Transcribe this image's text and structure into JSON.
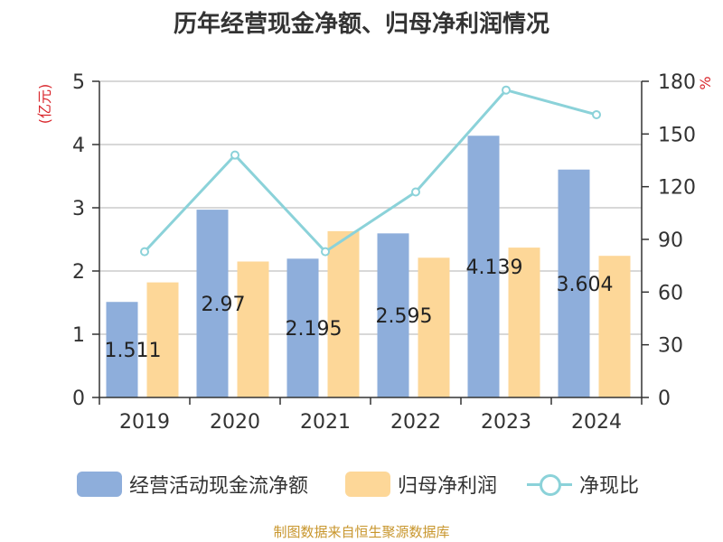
{
  "title": "历年经营现金净额、归母净利润情况",
  "source": "制图数据来自恒生聚源数据库",
  "chart_data": {
    "type": "bar",
    "title": "历年经营现金净额、归母净利润情况",
    "categories": [
      "2019",
      "2020",
      "2021",
      "2022",
      "2023",
      "2024"
    ],
    "series": [
      {
        "name": "经营活动现金流净额",
        "type": "bar",
        "axis": "left",
        "color": "#8eaedb",
        "values": [
          1.511,
          2.97,
          2.195,
          2.595,
          4.139,
          3.604
        ]
      },
      {
        "name": "归母净利润",
        "type": "bar",
        "axis": "left",
        "color": "#fdd798",
        "values": [
          1.82,
          2.15,
          2.63,
          2.21,
          2.37,
          2.24
        ]
      },
      {
        "name": "净现比",
        "type": "line",
        "axis": "right",
        "color": "#8bd2d9",
        "values": [
          83,
          138,
          83,
          117,
          175,
          161
        ]
      }
    ],
    "ylabel_left": "(亿元)",
    "ylabel_right": "%",
    "ylim_left": [
      0,
      5
    ],
    "ylim_right": [
      0,
      180
    ],
    "yticks_left": [
      "0",
      "1",
      "2",
      "3",
      "4",
      "5"
    ],
    "yticks_right": [
      "0",
      "30",
      "60",
      "90",
      "120",
      "150",
      "180"
    ],
    "data_labels": [
      "1.511",
      "2.97",
      "2.195",
      "2.595",
      "4.139",
      "3.604"
    ],
    "legend_position": "bottom",
    "grid": true
  }
}
